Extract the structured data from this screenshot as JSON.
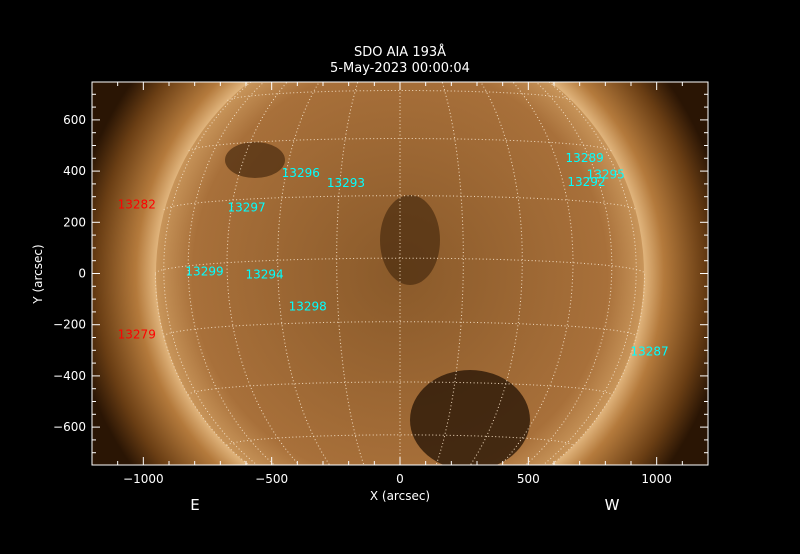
{
  "chart_data": {
    "type": "image",
    "title": "SDO AIA 193Å",
    "subtitle": "5-May-2023 00:00:04",
    "xlabel": "X (arcsec)",
    "ylabel": "Y (arcsec)",
    "xlim": [
      -1200,
      1200
    ],
    "ylim": [
      -748,
      748
    ],
    "xticks": [
      -1000,
      -500,
      0,
      500,
      1000
    ],
    "yticks": [
      -600,
      -400,
      -200,
      0,
      200,
      400,
      600
    ],
    "xtick_labels": [
      "−1000",
      "−500",
      "0",
      "500",
      "1000"
    ],
    "ytick_labels": [
      "−600",
      "−400",
      "−200",
      "0",
      "200",
      "400",
      "600"
    ],
    "east_label": "E",
    "west_label": "W",
    "solar_radius_arcsec": 953,
    "grid_spacing_deg": 15,
    "colors": {
      "text": "#ffffff",
      "region_on_disk": "#00ffff",
      "region_off_disk": "#ff0000",
      "grid": "#f2dcc0"
    },
    "regions": [
      {
        "name": "13282",
        "x": -1100,
        "y": 273,
        "color": "#ff0000"
      },
      {
        "name": "13279",
        "x": -1100,
        "y": -234,
        "color": "#ff0000"
      },
      {
        "name": "13296",
        "x": -461,
        "y": 397,
        "color": "#00ffff"
      },
      {
        "name": "13293",
        "x": -285,
        "y": 358,
        "color": "#00ffff"
      },
      {
        "name": "13297",
        "x": -672,
        "y": 261,
        "color": "#00ffff"
      },
      {
        "name": "13299",
        "x": -836,
        "y": 12,
        "color": "#00ffff"
      },
      {
        "name": "13294",
        "x": -602,
        "y": 0,
        "color": "#00ffff"
      },
      {
        "name": "13298",
        "x": -434,
        "y": -125,
        "color": "#00ffff"
      },
      {
        "name": "13289",
        "x": 645,
        "y": 456,
        "color": "#00ffff"
      },
      {
        "name": "13295",
        "x": 727,
        "y": 390,
        "color": "#00ffff"
      },
      {
        "name": "13292",
        "x": 652,
        "y": 362,
        "color": "#00ffff"
      },
      {
        "name": "13287",
        "x": 898,
        "y": -300,
        "color": "#00ffff"
      }
    ]
  }
}
